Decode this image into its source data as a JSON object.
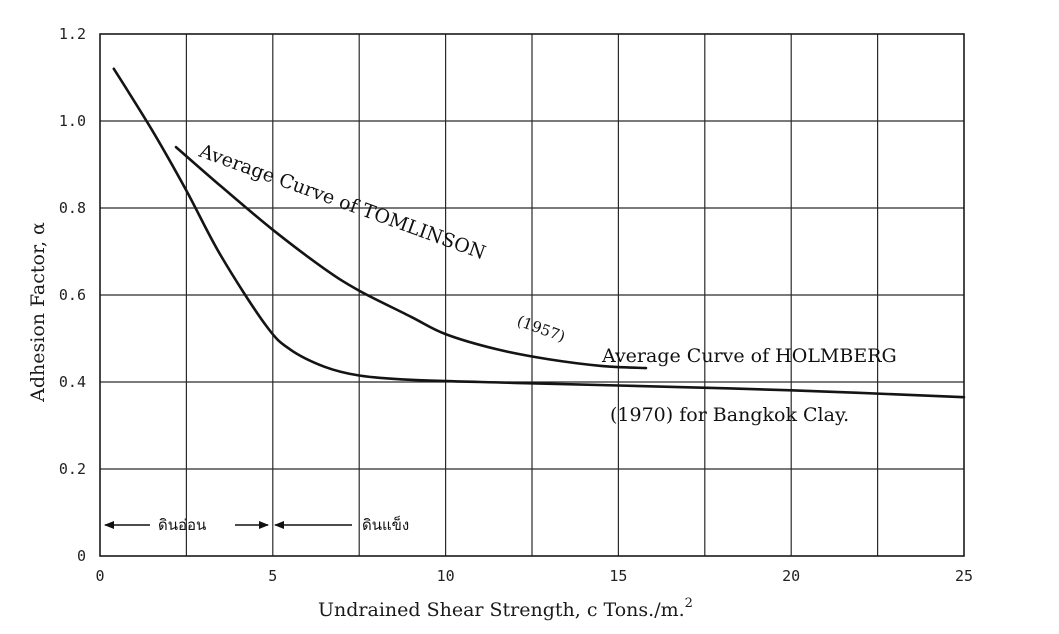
{
  "chart_data": {
    "type": "line",
    "xlabel": "Undrained Shear Strength, c Tons./m.",
    "xlabel_sup": "2",
    "ylabel": "Adhesion Factor, α",
    "xlim": [
      0,
      25
    ],
    "ylim": [
      0,
      1.2
    ],
    "x_ticks": [
      0,
      5,
      10,
      15,
      20,
      25
    ],
    "x_tick_labels": [
      "0",
      "5",
      "10",
      "15",
      "20",
      "25"
    ],
    "y_ticks": [
      0,
      0.2,
      0.4,
      0.6,
      0.8,
      1.0,
      1.2
    ],
    "y_tick_labels": [
      "0",
      "0.2",
      "0.4",
      "0.6",
      "0.8",
      "1.0",
      "1.2"
    ],
    "grid": true,
    "series": [
      {
        "name": "Average Curve of TOMLINSON (1957)",
        "x": [
          2.2,
          3.5,
          5.0,
          6.5,
          7.5,
          9.0,
          10.0,
          11.5,
          13.0,
          14.5,
          15.8
        ],
        "y": [
          0.94,
          0.85,
          0.75,
          0.66,
          0.61,
          0.55,
          0.51,
          0.475,
          0.452,
          0.437,
          0.432
        ]
      },
      {
        "name": "Average Curve of HOLMBERG (1970) for Bangkok Clay.",
        "x": [
          0.4,
          1.5,
          2.5,
          3.5,
          4.8,
          5.5,
          6.5,
          7.5,
          9.0,
          12.0,
          15.0,
          20.0,
          25.0
        ],
        "y": [
          1.12,
          0.98,
          0.84,
          0.69,
          0.53,
          0.475,
          0.435,
          0.415,
          0.405,
          0.398,
          0.392,
          0.381,
          0.365
        ]
      }
    ],
    "annotations": {
      "tomlinson": {
        "line1": "Average Curve of TOMLINSON",
        "year": "(1957)"
      },
      "holmberg": {
        "line1": "Average Curve of HOLMBERG",
        "line2": "(1970) for Bangkok Clay."
      }
    },
    "regions": [
      {
        "label": "ดินอ่อน",
        "x_start": 0,
        "x_end": 5
      },
      {
        "label": "ดินแข็ง",
        "x_start": 5
      }
    ]
  }
}
